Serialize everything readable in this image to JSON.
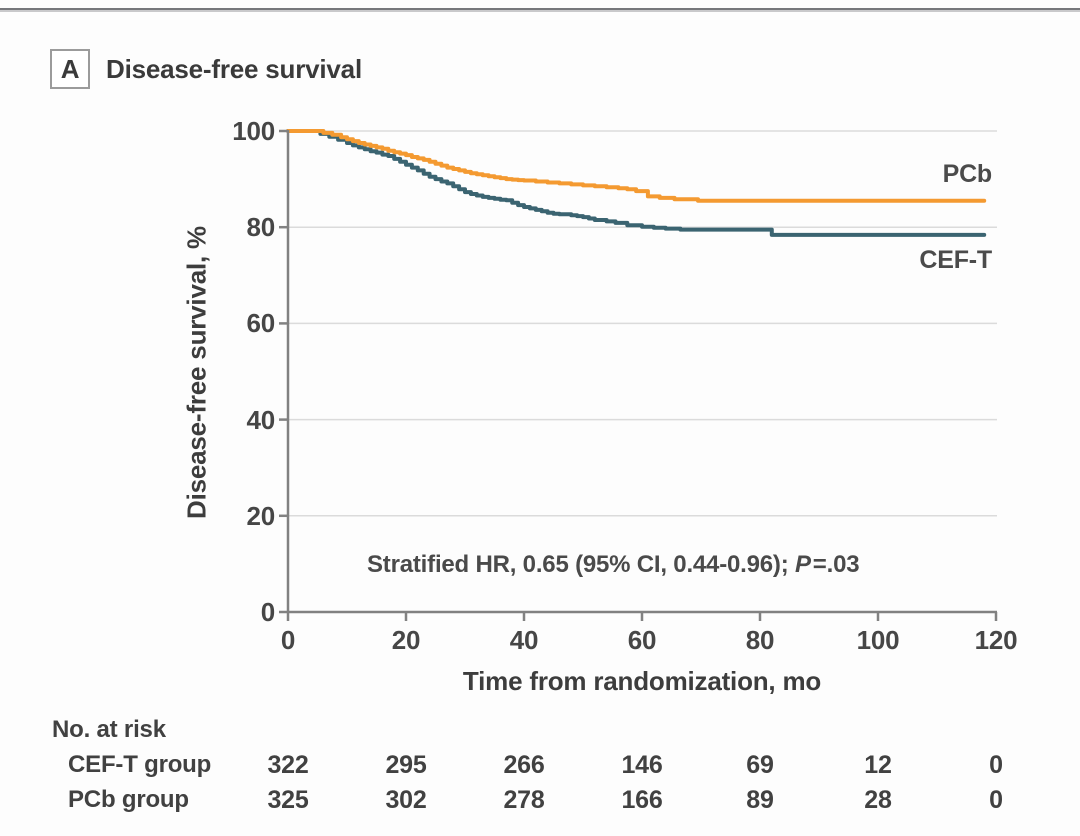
{
  "panel": {
    "label": "A",
    "title": "Disease-free survival"
  },
  "colors": {
    "pcb_orange": "#F49A31",
    "ceft_teal": "#3B6471",
    "axis_gray": "#818181",
    "grid_gray": "#DBDBDB",
    "text_dark": "#414141"
  },
  "chart_data": {
    "type": "line",
    "subtype": "kaplan-meier-step",
    "title": "Disease-free survival",
    "xlabel": "Time from randomization, mo",
    "ylabel": "Disease-free survival, %",
    "xlim": [
      0,
      120
    ],
    "ylim": [
      0,
      100
    ],
    "xticks": [
      0,
      20,
      40,
      60,
      80,
      100,
      120
    ],
    "yticks": [
      0,
      20,
      40,
      60,
      80,
      100
    ],
    "grid": "horizontal",
    "legend_position": "right-end-labels",
    "annotation": {
      "text": "Stratified HR, 0.65 (95% CI, 0.44-0.96); P=.03",
      "prefix": "Stratified HR, 0.65 (95% CI, 0.44-0.96); ",
      "p": "P",
      "rest": "=.03"
    },
    "series": [
      {
        "name": "PCb",
        "color": "#F49A31",
        "final_pct": 85.5,
        "points": [
          [
            0,
            100
          ],
          [
            5,
            100
          ],
          [
            6,
            99.6
          ],
          [
            7.5,
            99.2
          ],
          [
            9,
            98.7
          ],
          [
            10,
            98.3
          ],
          [
            11,
            97.9
          ],
          [
            12,
            97.5
          ],
          [
            13,
            97.2
          ],
          [
            14,
            96.9
          ],
          [
            15,
            96.6
          ],
          [
            16,
            96.3
          ],
          [
            17,
            95.9
          ],
          [
            18,
            95.6
          ],
          [
            19,
            95.3
          ],
          [
            20,
            95.0
          ],
          [
            21,
            94.6
          ],
          [
            22,
            94.3
          ],
          [
            23,
            94.0
          ],
          [
            24,
            93.6
          ],
          [
            25,
            93.2
          ],
          [
            26,
            92.8
          ],
          [
            27,
            92.4
          ],
          [
            28,
            92.1
          ],
          [
            29,
            91.8
          ],
          [
            30,
            91.5
          ],
          [
            31,
            91.2
          ],
          [
            32,
            91.0
          ],
          [
            33,
            90.8
          ],
          [
            34,
            90.6
          ],
          [
            35,
            90.4
          ],
          [
            36,
            90.2
          ],
          [
            37,
            90.0
          ],
          [
            38,
            89.9
          ],
          [
            39,
            89.8
          ],
          [
            40,
            89.7
          ],
          [
            42,
            89.5
          ],
          [
            44,
            89.3
          ],
          [
            46,
            89.1
          ],
          [
            48,
            88.9
          ],
          [
            50,
            88.7
          ],
          [
            52,
            88.5
          ],
          [
            54,
            88.3
          ],
          [
            56,
            88.1
          ],
          [
            57.5,
            87.9
          ],
          [
            59,
            87.5
          ],
          [
            61,
            86.4
          ],
          [
            63,
            86.1
          ],
          [
            65.5,
            85.8
          ],
          [
            69.5,
            85.5
          ],
          [
            118,
            85.5
          ]
        ]
      },
      {
        "name": "CEF-T",
        "color": "#3B6471",
        "final_pct": 78.4,
        "points": [
          [
            0,
            100
          ],
          [
            4.5,
            100
          ],
          [
            5.5,
            99.4
          ],
          [
            7,
            98.8
          ],
          [
            8.5,
            98.2
          ],
          [
            10,
            97.5
          ],
          [
            11,
            97.0
          ],
          [
            12,
            96.6
          ],
          [
            13,
            96.2
          ],
          [
            14,
            95.8
          ],
          [
            15,
            95.5
          ],
          [
            16,
            95.1
          ],
          [
            17,
            94.8
          ],
          [
            18,
            94.2
          ],
          [
            19,
            93.6
          ],
          [
            20,
            93.0
          ],
          [
            21,
            92.4
          ],
          [
            22,
            91.8
          ],
          [
            23,
            91.1
          ],
          [
            24,
            90.5
          ],
          [
            25,
            90.0
          ],
          [
            26,
            89.5
          ],
          [
            27,
            89.1
          ],
          [
            28,
            88.5
          ],
          [
            29,
            87.9
          ],
          [
            30,
            87.3
          ],
          [
            31,
            86.9
          ],
          [
            32,
            86.6
          ],
          [
            33,
            86.3
          ],
          [
            34,
            86.1
          ],
          [
            35,
            85.9
          ],
          [
            36,
            85.7
          ],
          [
            37,
            85.6
          ],
          [
            38,
            85.1
          ],
          [
            39,
            84.6
          ],
          [
            40,
            84.2
          ],
          [
            41,
            83.9
          ],
          [
            42,
            83.6
          ],
          [
            43,
            83.3
          ],
          [
            44,
            83.0
          ],
          [
            45,
            82.8
          ],
          [
            46,
            82.7
          ],
          [
            48,
            82.5
          ],
          [
            49,
            82.3
          ],
          [
            50,
            82.1
          ],
          [
            51,
            81.8
          ],
          [
            52,
            81.5
          ],
          [
            54,
            81.2
          ],
          [
            55.5,
            80.9
          ],
          [
            57.5,
            80.4
          ],
          [
            60,
            80.1
          ],
          [
            62,
            79.9
          ],
          [
            64,
            79.7
          ],
          [
            66.5,
            79.5
          ],
          [
            82,
            78.4
          ],
          [
            118,
            78.4
          ]
        ]
      }
    ]
  },
  "risk_table": {
    "heading": "No. at risk",
    "times": [
      0,
      20,
      40,
      60,
      80,
      100,
      120
    ],
    "rows": [
      {
        "label": "CEF-T group",
        "values": [
          322,
          295,
          266,
          146,
          69,
          12,
          0
        ]
      },
      {
        "label": "PCb group",
        "values": [
          325,
          302,
          278,
          166,
          89,
          28,
          0
        ]
      }
    ]
  }
}
